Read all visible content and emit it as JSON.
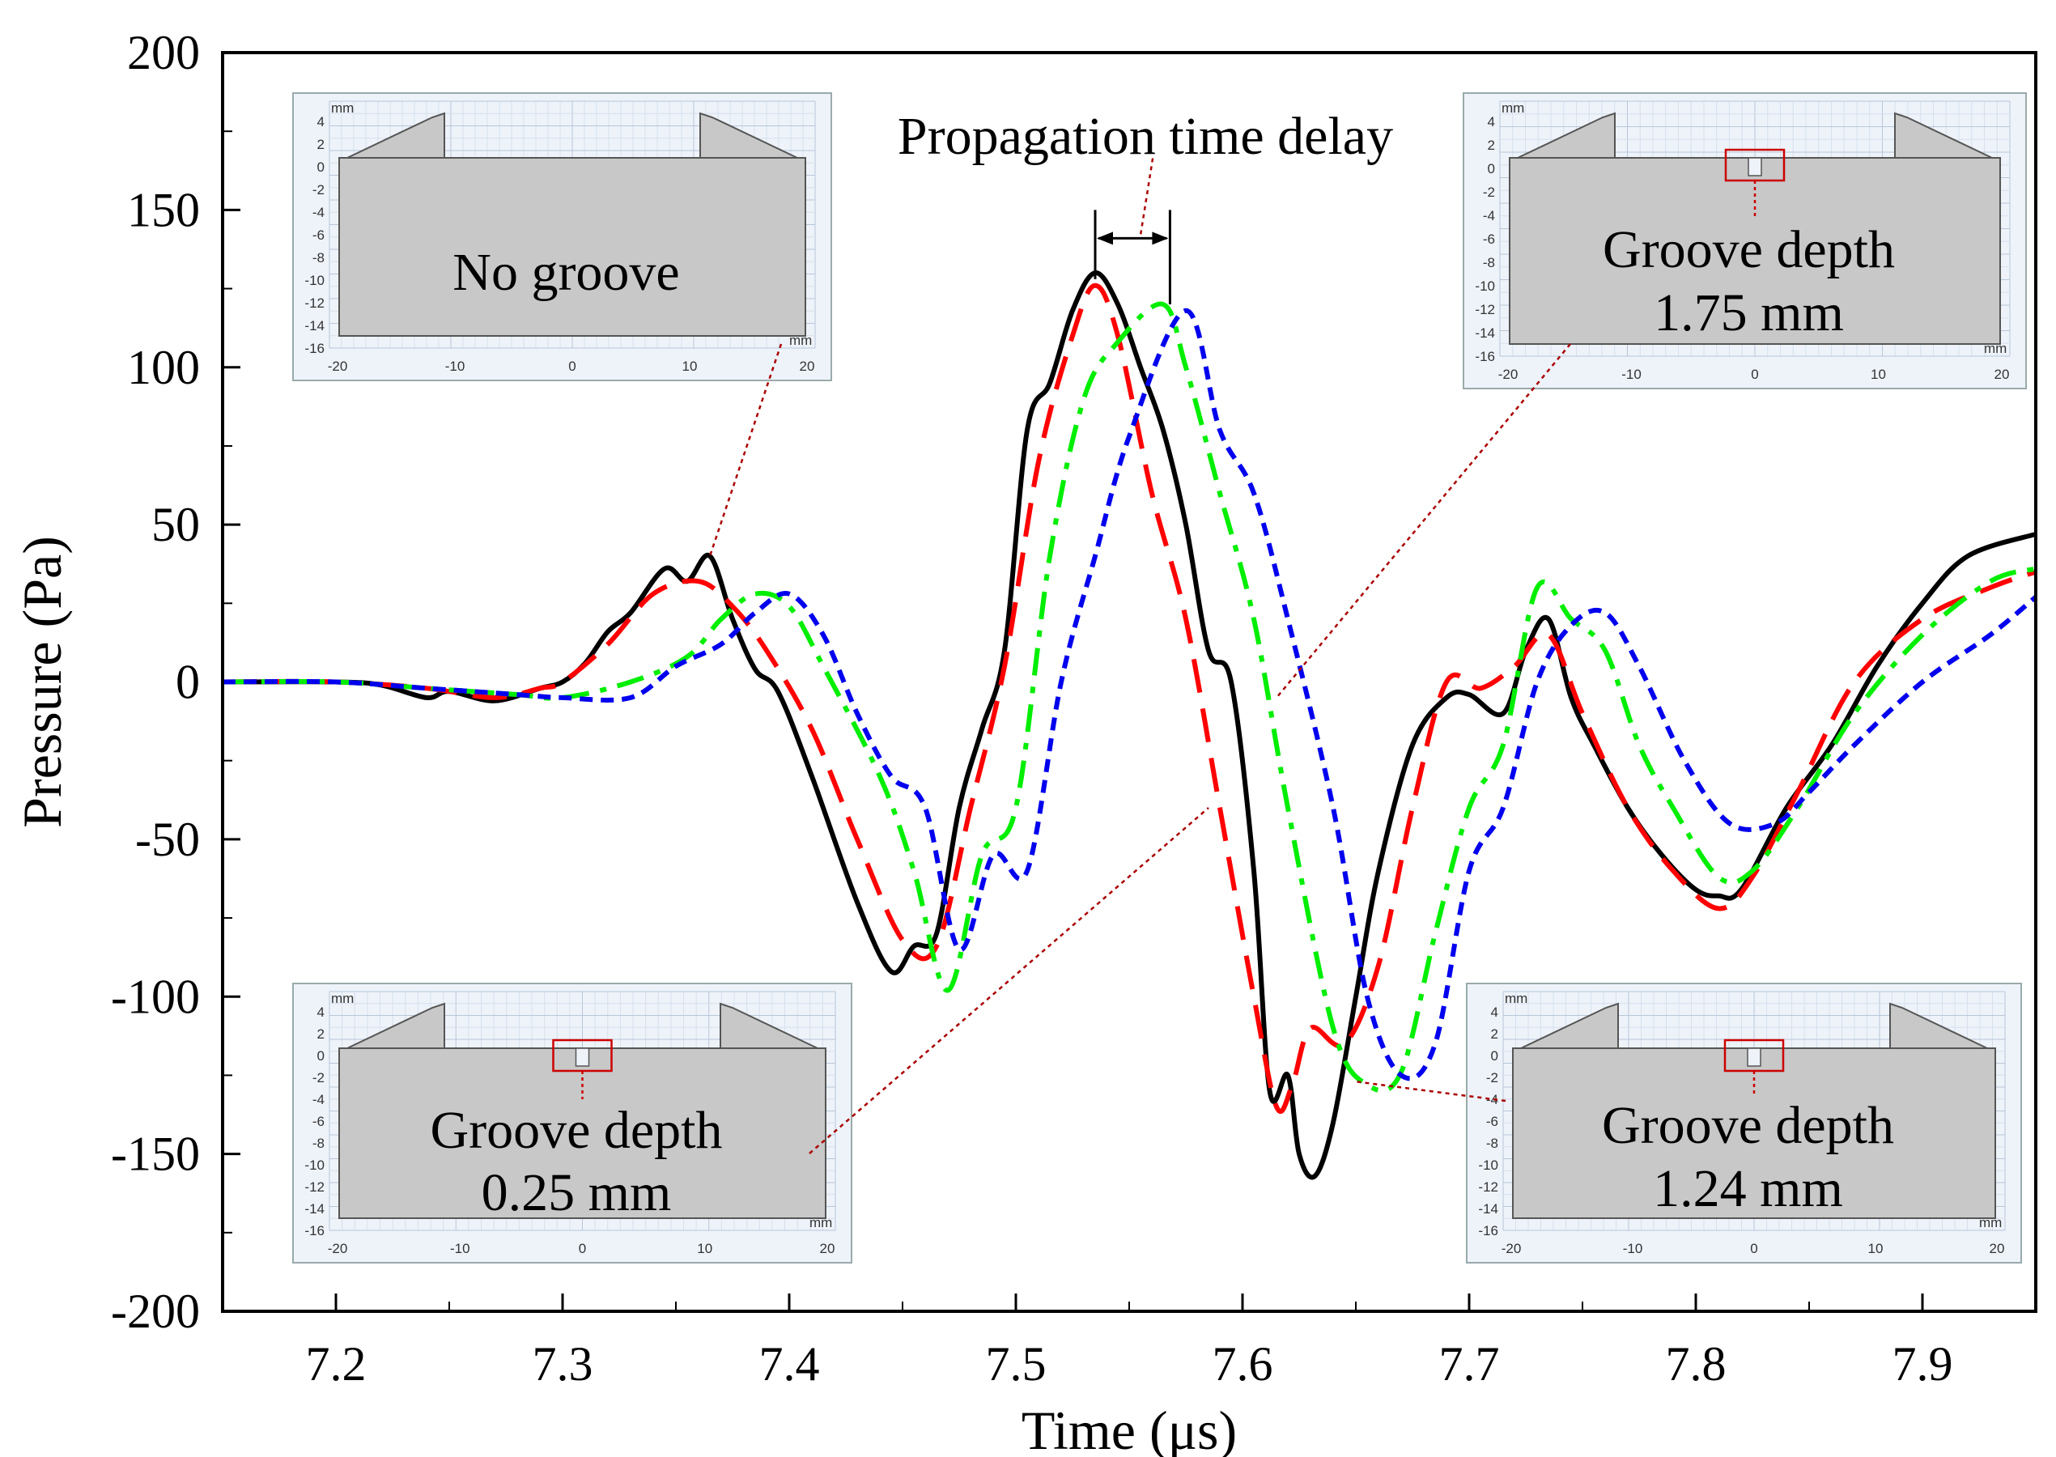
{
  "chart_data": {
    "type": "line",
    "xlabel": "Time (μs)",
    "ylabel": "Pressure (Pa)",
    "xlim": [
      7.15,
      7.95
    ],
    "ylim": [
      -200,
      200
    ],
    "x_ticks": [
      7.2,
      7.3,
      7.4,
      7.5,
      7.6,
      7.7,
      7.8,
      7.9
    ],
    "y_ticks": [
      200,
      150,
      100,
      50,
      0,
      -50,
      -100,
      -150,
      -200
    ],
    "x_tick_labels": [
      "7.2",
      "7.3",
      "7.4",
      "7.5",
      "7.6",
      "7.7",
      "7.8",
      "7.9"
    ],
    "y_tick_labels": [
      "200",
      "150",
      "100",
      "50",
      "0",
      "-50",
      "-100",
      "-150",
      "-200"
    ],
    "legend": null,
    "series": [
      {
        "name": "No groove",
        "color": "#000000",
        "style": "solid",
        "points": [
          [
            7.15,
            0
          ],
          [
            7.2,
            0
          ],
          [
            7.22,
            -1
          ],
          [
            7.24,
            -5
          ],
          [
            7.25,
            -3
          ],
          [
            7.27,
            -6
          ],
          [
            7.29,
            -2
          ],
          [
            7.3,
            0
          ],
          [
            7.31,
            6
          ],
          [
            7.32,
            16
          ],
          [
            7.33,
            22
          ],
          [
            7.345,
            36
          ],
          [
            7.355,
            32
          ],
          [
            7.365,
            40
          ],
          [
            7.375,
            20
          ],
          [
            7.385,
            4
          ],
          [
            7.395,
            -3
          ],
          [
            7.41,
            -30
          ],
          [
            7.43,
            -70
          ],
          [
            7.445,
            -92
          ],
          [
            7.455,
            -84
          ],
          [
            7.465,
            -80
          ],
          [
            7.475,
            -40
          ],
          [
            7.485,
            -15
          ],
          [
            7.495,
            10
          ],
          [
            7.505,
            80
          ],
          [
            7.515,
            95
          ],
          [
            7.525,
            118
          ],
          [
            7.535,
            130
          ],
          [
            7.545,
            120
          ],
          [
            7.555,
            100
          ],
          [
            7.565,
            80
          ],
          [
            7.575,
            50
          ],
          [
            7.585,
            10
          ],
          [
            7.595,
            0
          ],
          [
            7.605,
            -60
          ],
          [
            7.612,
            -130
          ],
          [
            7.62,
            -125
          ],
          [
            7.625,
            -150
          ],
          [
            7.632,
            -157
          ],
          [
            7.64,
            -140
          ],
          [
            7.65,
            -100
          ],
          [
            7.66,
            -60
          ],
          [
            7.675,
            -20
          ],
          [
            7.69,
            -5
          ],
          [
            7.7,
            -4
          ],
          [
            7.715,
            -10
          ],
          [
            7.725,
            10
          ],
          [
            7.735,
            20
          ],
          [
            7.745,
            -5
          ],
          [
            7.755,
            -20
          ],
          [
            7.77,
            -40
          ],
          [
            7.785,
            -55
          ],
          [
            7.8,
            -66
          ],
          [
            7.81,
            -68
          ],
          [
            7.82,
            -66
          ],
          [
            7.84,
            -40
          ],
          [
            7.86,
            -20
          ],
          [
            7.88,
            5
          ],
          [
            7.9,
            25
          ],
          [
            7.92,
            40
          ],
          [
            7.95,
            47
          ]
        ]
      },
      {
        "name": "Groove depth 0.25 mm",
        "color": "#ff0000",
        "style": "dashed",
        "points": [
          [
            7.15,
            0
          ],
          [
            7.2,
            0
          ],
          [
            7.24,
            -2
          ],
          [
            7.27,
            -5
          ],
          [
            7.29,
            -2
          ],
          [
            7.3,
            0
          ],
          [
            7.32,
            12
          ],
          [
            7.34,
            28
          ],
          [
            7.36,
            32
          ],
          [
            7.375,
            24
          ],
          [
            7.39,
            10
          ],
          [
            7.41,
            -15
          ],
          [
            7.43,
            -50
          ],
          [
            7.45,
            -82
          ],
          [
            7.465,
            -84
          ],
          [
            7.48,
            -40
          ],
          [
            7.495,
            5
          ],
          [
            7.51,
            70
          ],
          [
            7.525,
            110
          ],
          [
            7.535,
            126
          ],
          [
            7.545,
            110
          ],
          [
            7.56,
            60
          ],
          [
            7.575,
            20
          ],
          [
            7.59,
            -40
          ],
          [
            7.605,
            -100
          ],
          [
            7.615,
            -135
          ],
          [
            7.622,
            -128
          ],
          [
            7.63,
            -110
          ],
          [
            7.645,
            -115
          ],
          [
            7.66,
            -90
          ],
          [
            7.675,
            -40
          ],
          [
            7.69,
            0
          ],
          [
            7.705,
            -2
          ],
          [
            7.72,
            5
          ],
          [
            7.735,
            15
          ],
          [
            7.75,
            -10
          ],
          [
            7.77,
            -40
          ],
          [
            7.79,
            -60
          ],
          [
            7.81,
            -72
          ],
          [
            7.825,
            -62
          ],
          [
            7.845,
            -35
          ],
          [
            7.87,
            0
          ],
          [
            7.9,
            20
          ],
          [
            7.93,
            30
          ],
          [
            7.95,
            35
          ]
        ]
      },
      {
        "name": "Groove depth 1.24 mm",
        "color": "#00ee00",
        "style": "dashdot",
        "points": [
          [
            7.15,
            0
          ],
          [
            7.2,
            0
          ],
          [
            7.24,
            -2
          ],
          [
            7.28,
            -4
          ],
          [
            7.3,
            -5
          ],
          [
            7.33,
            0
          ],
          [
            7.355,
            8
          ],
          [
            7.37,
            20
          ],
          [
            7.385,
            28
          ],
          [
            7.4,
            24
          ],
          [
            7.415,
            5
          ],
          [
            7.44,
            -30
          ],
          [
            7.455,
            -60
          ],
          [
            7.47,
            -98
          ],
          [
            7.485,
            -55
          ],
          [
            7.5,
            -40
          ],
          [
            7.515,
            40
          ],
          [
            7.53,
            90
          ],
          [
            7.545,
            108
          ],
          [
            7.565,
            120
          ],
          [
            7.575,
            100
          ],
          [
            7.59,
            60
          ],
          [
            7.605,
            20
          ],
          [
            7.62,
            -40
          ],
          [
            7.64,
            -110
          ],
          [
            7.655,
            -128
          ],
          [
            7.67,
            -124
          ],
          [
            7.685,
            -80
          ],
          [
            7.7,
            -40
          ],
          [
            7.715,
            -20
          ],
          [
            7.73,
            30
          ],
          [
            7.745,
            20
          ],
          [
            7.76,
            10
          ],
          [
            7.775,
            -20
          ],
          [
            7.79,
            -40
          ],
          [
            7.81,
            -62
          ],
          [
            7.825,
            -60
          ],
          [
            7.845,
            -40
          ],
          [
            7.87,
            -10
          ],
          [
            7.9,
            15
          ],
          [
            7.93,
            32
          ],
          [
            7.95,
            36
          ]
        ]
      },
      {
        "name": "Groove depth 1.75 mm",
        "color": "#0000ee",
        "style": "dotted",
        "points": [
          [
            7.15,
            0
          ],
          [
            7.2,
            0
          ],
          [
            7.24,
            -2
          ],
          [
            7.28,
            -4
          ],
          [
            7.3,
            -5
          ],
          [
            7.33,
            -5
          ],
          [
            7.35,
            5
          ],
          [
            7.37,
            12
          ],
          [
            7.385,
            22
          ],
          [
            7.4,
            28
          ],
          [
            7.415,
            15
          ],
          [
            7.43,
            -10
          ],
          [
            7.445,
            -30
          ],
          [
            7.46,
            -40
          ],
          [
            7.475,
            -85
          ],
          [
            7.49,
            -55
          ],
          [
            7.505,
            -60
          ],
          [
            7.52,
            0
          ],
          [
            7.535,
            40
          ],
          [
            7.55,
            78
          ],
          [
            7.575,
            118
          ],
          [
            7.59,
            80
          ],
          [
            7.605,
            60
          ],
          [
            7.62,
            20
          ],
          [
            7.64,
            -40
          ],
          [
            7.655,
            -100
          ],
          [
            7.67,
            -125
          ],
          [
            7.685,
            -115
          ],
          [
            7.7,
            -60
          ],
          [
            7.715,
            -40
          ],
          [
            7.73,
            0
          ],
          [
            7.745,
            18
          ],
          [
            7.76,
            22
          ],
          [
            7.775,
            5
          ],
          [
            7.795,
            -25
          ],
          [
            7.815,
            -45
          ],
          [
            7.835,
            -45
          ],
          [
            7.85,
            -35
          ],
          [
            7.87,
            -20
          ],
          [
            7.9,
            0
          ],
          [
            7.93,
            15
          ],
          [
            7.95,
            27
          ]
        ]
      }
    ],
    "annotations": {
      "delay_label": "Propagation time delay",
      "delay_range_x": [
        7.535,
        7.568
      ]
    },
    "insets": [
      {
        "key": "no_groove",
        "label_line1": "No groove",
        "label_line2": "",
        "has_groove": false,
        "target_x": 7.365,
        "target_y": 40
      },
      {
        "key": "groove_025",
        "label_line1": "Groove depth",
        "label_line2": "0.25 mm",
        "has_groove": true,
        "target_x": 7.585,
        "target_y": -40
      },
      {
        "key": "groove_124",
        "label_line1": "Groove depth",
        "label_line2": "1.24 mm",
        "has_groove": true,
        "target_x": 7.65,
        "target_y": -127
      },
      {
        "key": "groove_175",
        "label_line1": "Groove depth",
        "label_line2": "1.75 mm",
        "has_groove": true,
        "target_x": 7.615,
        "target_y": -5
      }
    ],
    "inset_axes": {
      "unit": "mm",
      "y_ticks": [
        "4",
        "2",
        "0",
        "-2",
        "-4",
        "-6",
        "-8",
        "-10",
        "-12",
        "-14",
        "-16"
      ],
      "x_ticks": [
        "-20",
        "-10",
        "0",
        "10",
        "20"
      ]
    }
  }
}
